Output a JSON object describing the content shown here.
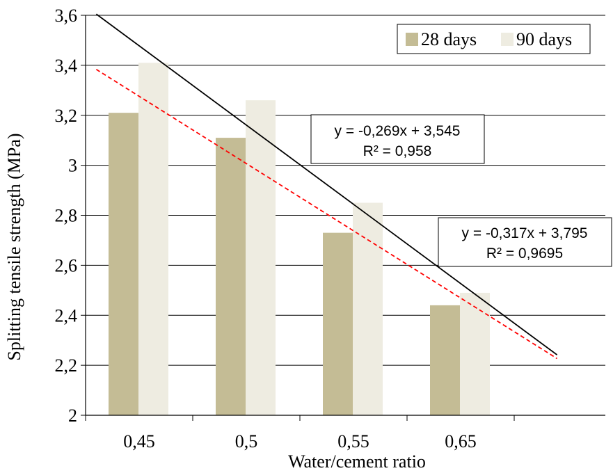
{
  "chart_data": {
    "type": "bar",
    "xlabel": "Water/cement ratio",
    "ylabel": "Splitting tensile strength  (MPa)",
    "categories": [
      "0,45",
      "0,5",
      "0,55",
      "0,65"
    ],
    "ylim": [
      2,
      3.6
    ],
    "yticks": [
      {
        "value": 2,
        "label": "2"
      },
      {
        "value": 2.2,
        "label": "2,2"
      },
      {
        "value": 2.4,
        "label": "2,4"
      },
      {
        "value": 2.6,
        "label": "2,6"
      },
      {
        "value": 2.8,
        "label": "2,8"
      },
      {
        "value": 3.0,
        "label": "3"
      },
      {
        "value": 3.2,
        "label": "3,2"
      },
      {
        "value": 3.4,
        "label": "3,4"
      },
      {
        "value": 3.6,
        "label": "3,6"
      }
    ],
    "grid": true,
    "legend_position": "top-right",
    "series": [
      {
        "name": "28 days",
        "color": "#c4bc95",
        "values": [
          3.21,
          3.11,
          2.73,
          2.44
        ]
      },
      {
        "name": "90 days",
        "color": "#eeece1",
        "values": [
          3.41,
          3.26,
          2.85,
          2.49
        ]
      }
    ],
    "trendlines": [
      {
        "series": "90 days",
        "style": "solid",
        "color": "#000000",
        "slope": -0.317,
        "intercept": 3.795,
        "equation": "y = -0,317x + 3,795",
        "r2": "R² = 0,9695"
      },
      {
        "series": "28 days",
        "style": "dashed",
        "color": "#ff0000",
        "slope": -0.269,
        "intercept": 3.545,
        "equation": "y = -0,269x + 3,545",
        "r2": "R² = 0,958"
      }
    ]
  }
}
